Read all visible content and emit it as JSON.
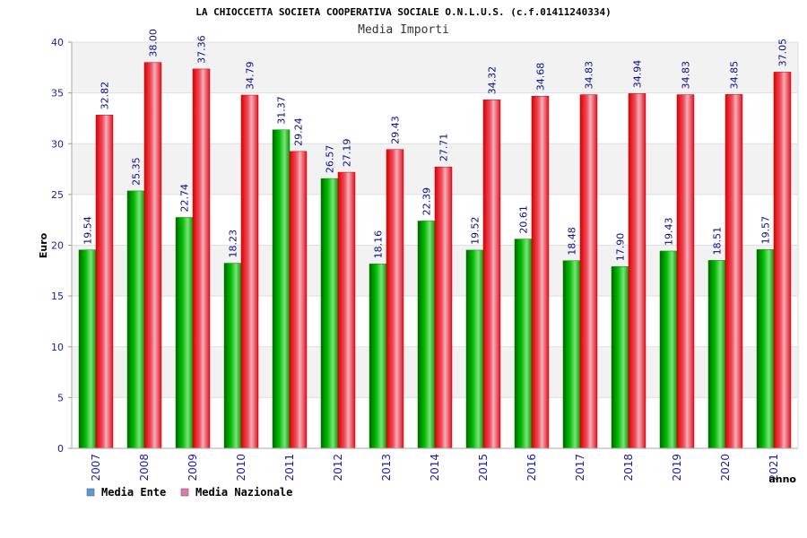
{
  "chart_data": {
    "type": "bar",
    "title": "LA CHIOCCETTA SOCIETA COOPERATIVA SOCIALE O.N.L.U.S. (c.f.01411240334)",
    "subtitle": "Media Importi",
    "xlabel": "anno",
    "ylabel": "Euro",
    "ylim": [
      0,
      40
    ],
    "yticks": [
      0,
      5,
      10,
      15,
      20,
      25,
      30,
      35,
      40
    ],
    "grid": true,
    "legend_position": "bottom-left",
    "categories": [
      "2007",
      "2008",
      "2009",
      "2010",
      "2011",
      "2012",
      "2013",
      "2014",
      "2015",
      "2016",
      "2017",
      "2018",
      "2019",
      "2020",
      "2021"
    ],
    "series": [
      {
        "name": "Media Ente",
        "color": "#00aa00",
        "legend_color": "#5b9bd5",
        "values": [
          19.54,
          25.35,
          22.74,
          18.23,
          31.37,
          26.57,
          18.16,
          22.39,
          19.52,
          20.61,
          18.48,
          17.9,
          19.43,
          18.51,
          19.57
        ],
        "labels": [
          "19.54",
          "25.35",
          "22.74",
          "18.23",
          "31.37",
          "26.57",
          "18.16",
          "22.39",
          "19.52",
          "20.61",
          "18.48",
          "17.90",
          "19.43",
          "18.51",
          "19.57"
        ]
      },
      {
        "name": "Media Nazionale",
        "color": "#ee2233",
        "legend_color": "#e07aa8",
        "values": [
          32.82,
          38.0,
          37.36,
          34.79,
          29.24,
          27.19,
          29.43,
          27.71,
          34.32,
          34.68,
          34.83,
          34.94,
          34.83,
          34.85,
          37.05
        ],
        "labels": [
          "32.82",
          "38.00",
          "37.36",
          "34.79",
          "29.24",
          "27.19",
          "29.43",
          "27.71",
          "34.32",
          "34.68",
          "34.83",
          "34.94",
          "34.83",
          "34.85",
          "37.05"
        ]
      }
    ]
  }
}
